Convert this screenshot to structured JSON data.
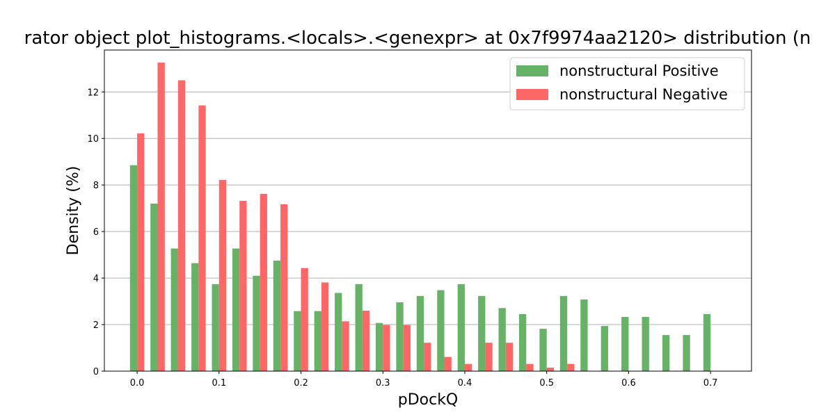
{
  "chart_data": {
    "type": "bar",
    "title": "rator object plot_histograms.<locals>.<genexpr> at 0x7f9974aa2120> distribution (n",
    "xlabel": "pDockQ",
    "ylabel": "Density (%)",
    "xlim": [
      -0.04,
      0.75
    ],
    "ylim": [
      0,
      13.8
    ],
    "x_ticks": [
      0.0,
      0.1,
      0.2,
      0.3,
      0.4,
      0.5,
      0.6,
      0.7
    ],
    "x_tick_labels": [
      "0.0",
      "0.1",
      "0.2",
      "0.3",
      "0.4",
      "0.5",
      "0.6",
      "0.7"
    ],
    "y_ticks": [
      0,
      2,
      4,
      6,
      8,
      10,
      12
    ],
    "y_tick_labels": [
      "0",
      "2",
      "4",
      "6",
      "8",
      "10",
      "12"
    ],
    "grid": "y",
    "legend_position": "top-right",
    "bin_centers": [
      0.0,
      0.025,
      0.05,
      0.075,
      0.1,
      0.125,
      0.15,
      0.175,
      0.2,
      0.225,
      0.25,
      0.275,
      0.3,
      0.325,
      0.35,
      0.375,
      0.4,
      0.425,
      0.45,
      0.475,
      0.5,
      0.525,
      0.55,
      0.575,
      0.6,
      0.625,
      0.65,
      0.675,
      0.7
    ],
    "series": [
      {
        "name": "nonstructural Positive",
        "color": "#66b266",
        "values": [
          8.85,
          7.2,
          5.27,
          4.64,
          3.74,
          5.27,
          4.1,
          4.75,
          2.58,
          2.58,
          3.36,
          3.74,
          2.07,
          2.96,
          3.23,
          3.48,
          3.74,
          3.23,
          2.71,
          2.45,
          1.82,
          3.23,
          3.08,
          1.94,
          2.33,
          2.33,
          1.55,
          1.55,
          2.45
        ]
      },
      {
        "name": "nonstructural Negative",
        "color": "#ff6666",
        "values": [
          10.22,
          13.26,
          12.5,
          11.42,
          8.22,
          7.32,
          7.62,
          7.17,
          4.43,
          3.81,
          2.14,
          2.6,
          1.98,
          1.98,
          1.22,
          0.61,
          0.31,
          1.22,
          1.22,
          0.31,
          0.15,
          0.31,
          0,
          0,
          0,
          0,
          0,
          0,
          0
        ]
      }
    ]
  }
}
